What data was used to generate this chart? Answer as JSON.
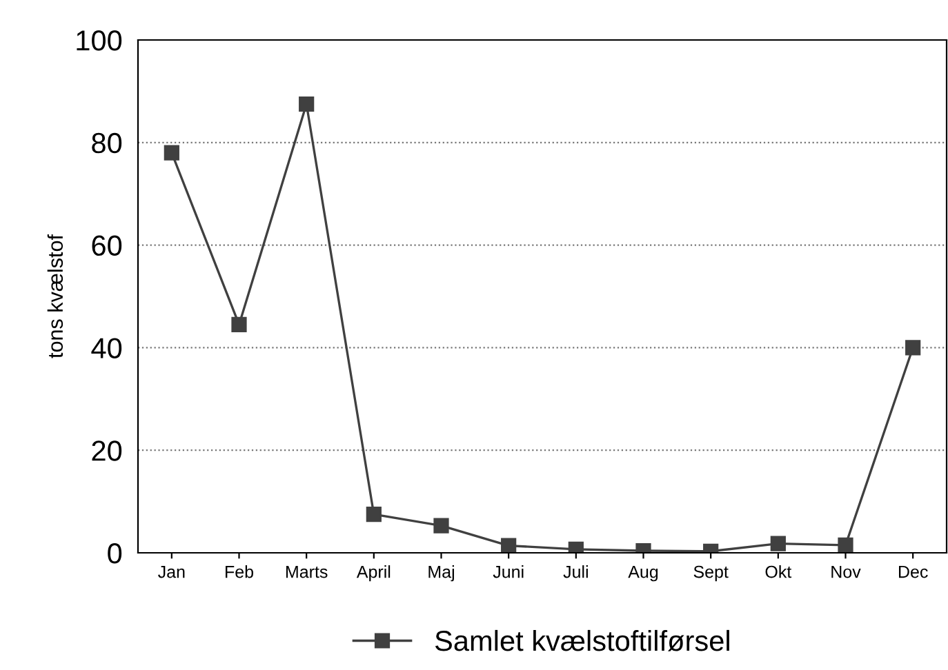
{
  "chart_data": {
    "type": "line",
    "ylabel": "tons kvælstof",
    "categories": [
      "Jan",
      "Feb",
      "Marts",
      "April",
      "Maj",
      "Juni",
      "Juli",
      "Aug",
      "Sept",
      "Okt",
      "Nov",
      "Dec"
    ],
    "series": [
      {
        "name": "Samlet kvælstoftilførsel",
        "color": "#404040",
        "values": [
          78,
          44.5,
          87.5,
          7.5,
          5.3,
          1.4,
          0.7,
          0.4,
          0.3,
          1.8,
          1.5,
          40
        ]
      }
    ],
    "ylim": [
      0,
      100
    ],
    "yticks": [
      0,
      20,
      40,
      60,
      80,
      100
    ],
    "grid": "y",
    "legend": "bottom",
    "marker": "square",
    "line_style": "solid"
  }
}
